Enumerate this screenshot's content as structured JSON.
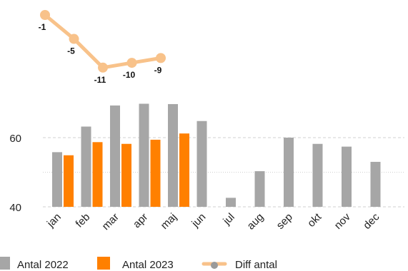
{
  "chart_data": {
    "type": "bar",
    "categories": [
      "jan",
      "feb",
      "mar",
      "apr",
      "maj",
      "jun",
      "jul",
      "aug",
      "sep",
      "okt",
      "nov",
      "dec"
    ],
    "series": [
      {
        "name": "Antal 2022",
        "type": "bar",
        "color": "#a6a6a6",
        "values": [
          55.8,
          63.2,
          69.3,
          69.8,
          69.7,
          64.8,
          42.6,
          50.3,
          60.0,
          58.2,
          57.4,
          53.0
        ]
      },
      {
        "name": "Antal 2023",
        "type": "bar",
        "color": "#ff8000",
        "values": [
          54.9,
          58.7,
          58.2,
          59.4,
          61.2,
          null,
          null,
          null,
          null,
          null,
          null,
          null
        ]
      },
      {
        "name": "Diff antal",
        "type": "line",
        "color": "#f8c28a",
        "values": [
          -1,
          -5,
          -11,
          -10,
          -9,
          null,
          null,
          null,
          null,
          null,
          null,
          null
        ]
      }
    ],
    "yticks": [
      40,
      60
    ],
    "ylim": [
      40,
      72
    ],
    "diff_ylim": [
      -12,
      0
    ],
    "grid": true,
    "legend_position": "bottom"
  }
}
